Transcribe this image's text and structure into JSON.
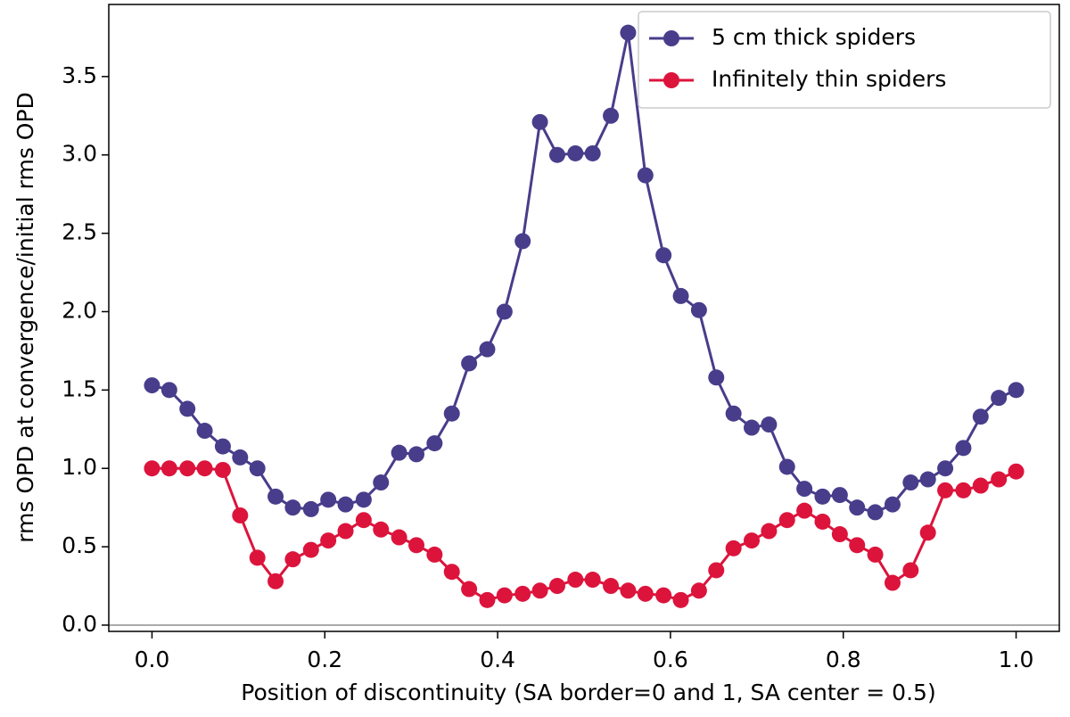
{
  "chart_data": {
    "type": "line",
    "xlabel": "Position of discontinuity (SA border=0 and 1, SA center = 0.5)",
    "ylabel": "rms OPD at convergence/initial rms OPD",
    "x": [
      0,
      0.02,
      0.041,
      0.061,
      0.082,
      0.102,
      0.122,
      0.143,
      0.163,
      0.184,
      0.204,
      0.224,
      0.245,
      0.265,
      0.286,
      0.306,
      0.327,
      0.347,
      0.367,
      0.388,
      0.408,
      0.429,
      0.449,
      0.469,
      0.49,
      0.51,
      0.531,
      0.551,
      0.571,
      0.592,
      0.612,
      0.633,
      0.653,
      0.673,
      0.694,
      0.714,
      0.735,
      0.755,
      0.776,
      0.796,
      0.816,
      0.837,
      0.857,
      0.878,
      0.898,
      0.918,
      0.939,
      0.959,
      0.98,
      1.0
    ],
    "series": [
      {
        "name": "5 cm thick spiders",
        "color": "#483d8b",
        "values": [
          1.53,
          1.5,
          1.38,
          1.24,
          1.14,
          1.07,
          1.0,
          0.82,
          0.75,
          0.74,
          0.8,
          0.77,
          0.8,
          0.91,
          1.1,
          1.09,
          1.16,
          1.35,
          1.67,
          1.76,
          2.0,
          2.45,
          3.21,
          3.0,
          3.01,
          3.01,
          3.25,
          3.78,
          2.87,
          2.36,
          2.1,
          2.01,
          1.58,
          1.35,
          1.26,
          1.28,
          1.01,
          0.87,
          0.82,
          0.83,
          0.75,
          0.72,
          0.77,
          0.91,
          0.93,
          1.0,
          1.13,
          1.33,
          1.45,
          1.5
        ]
      },
      {
        "name": "Infinitely thin spiders",
        "color": "#dc143c",
        "values": [
          1.0,
          1.0,
          1.0,
          1.0,
          0.99,
          0.7,
          0.43,
          0.28,
          0.42,
          0.48,
          0.54,
          0.6,
          0.67,
          0.61,
          0.56,
          0.51,
          0.45,
          0.34,
          0.23,
          0.16,
          0.19,
          0.2,
          0.22,
          0.25,
          0.29,
          0.29,
          0.25,
          0.22,
          0.2,
          0.19,
          0.16,
          0.22,
          0.35,
          0.49,
          0.54,
          0.6,
          0.67,
          0.73,
          0.66,
          0.58,
          0.51,
          0.45,
          0.27,
          0.35,
          0.59,
          0.86,
          0.86,
          0.89,
          0.93,
          0.98
        ]
      }
    ],
    "xlim": [
      -0.05,
      1.05
    ],
    "ylim": [
      -0.04,
      3.96
    ],
    "xticks": [
      {
        "value": 0,
        "label": "0.0"
      },
      0.2,
      0.4,
      0.6,
      0.8,
      {
        "value": 1,
        "label": "1.0"
      }
    ],
    "yticks": [
      {
        "value": 0,
        "label": "0.0"
      },
      0.5,
      {
        "value": 1,
        "label": "1.0"
      },
      1.5,
      {
        "value": 2,
        "label": "2.0"
      },
      2.5,
      {
        "value": 3,
        "label": "3.0"
      },
      3.5
    ],
    "hline": 0,
    "hline_color": "#aaaaaa",
    "grid": false,
    "legend": "upper right"
  }
}
